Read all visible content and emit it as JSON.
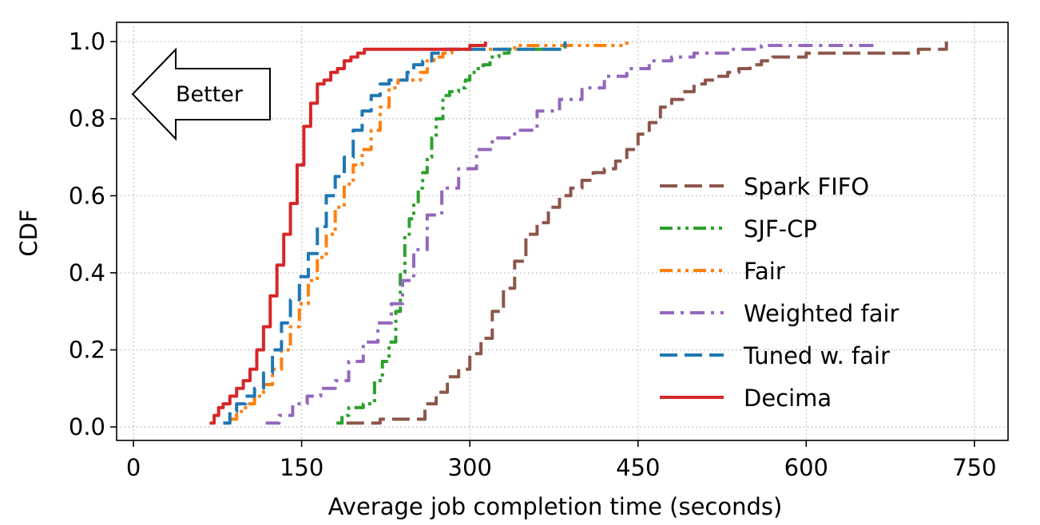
{
  "chart_data": {
    "type": "line",
    "title": "",
    "xlabel": "Average job completion time (seconds)",
    "ylabel": "CDF",
    "xlim": [
      -15,
      780
    ],
    "ylim": [
      -0.035,
      1.05
    ],
    "xticks": [
      0,
      150,
      300,
      450,
      600,
      750
    ],
    "yticks": [
      0.0,
      0.2,
      0.4,
      0.6,
      0.8,
      1.0
    ],
    "xtick_labels": [
      "0",
      "150",
      "300",
      "450",
      "600",
      "750"
    ],
    "ytick_labels": [
      "0.0",
      "0.2",
      "0.4",
      "0.6",
      "0.8",
      "1.0"
    ],
    "grid": "dotted",
    "legend_position": "lower-right",
    "annotation": {
      "text": "Better",
      "shape": "left-arrow"
    },
    "series": [
      {
        "name": "Spark FIFO",
        "color": "#8c564b",
        "dash": "dashed",
        "x": [
          190,
          200,
          210,
          220,
          230,
          240,
          250,
          260,
          270,
          280,
          290,
          300,
          310,
          320,
          330,
          340,
          350,
          360,
          370,
          380,
          390,
          400,
          410,
          420,
          430,
          440,
          450,
          460,
          470,
          480,
          490,
          500,
          510,
          520,
          530,
          540,
          550,
          560,
          570,
          580,
          590,
          600,
          620,
          640,
          660,
          680,
          700,
          725
        ],
        "y": [
          0.01,
          0.01,
          0.01,
          0.02,
          0.02,
          0.02,
          0.02,
          0.06,
          0.09,
          0.13,
          0.15,
          0.19,
          0.23,
          0.3,
          0.36,
          0.43,
          0.5,
          0.53,
          0.57,
          0.6,
          0.62,
          0.64,
          0.66,
          0.67,
          0.69,
          0.72,
          0.76,
          0.79,
          0.83,
          0.85,
          0.87,
          0.89,
          0.9,
          0.91,
          0.92,
          0.93,
          0.94,
          0.95,
          0.96,
          0.96,
          0.96,
          0.97,
          0.97,
          0.97,
          0.97,
          0.97,
          0.98,
          1.0
        ]
      },
      {
        "name": "SJF-CP",
        "color": "#2ca02c",
        "dash": "dashdotdot",
        "x": [
          181,
          186,
          192,
          200,
          205,
          210,
          215,
          222,
          228,
          234,
          238,
          242,
          246,
          250,
          254,
          258,
          262,
          266,
          270,
          276,
          282,
          290,
          296,
          300,
          306,
          312,
          318,
          326,
          335,
          360,
          385
        ],
        "y": [
          0.01,
          0.03,
          0.05,
          0.05,
          0.06,
          0.06,
          0.12,
          0.17,
          0.22,
          0.3,
          0.4,
          0.5,
          0.54,
          0.58,
          0.62,
          0.66,
          0.7,
          0.75,
          0.8,
          0.86,
          0.87,
          0.88,
          0.9,
          0.92,
          0.93,
          0.94,
          0.96,
          0.97,
          0.98,
          0.98,
          1.0
        ]
      },
      {
        "name": "Fair",
        "color": "#ff7f0e",
        "dash": "dashdotdot",
        "x": [
          86,
          92,
          100,
          108,
          116,
          124,
          132,
          140,
          148,
          156,
          164,
          172,
          180,
          188,
          196,
          204,
          212,
          220,
          228,
          236,
          244,
          250,
          256,
          262,
          268,
          276,
          284,
          300,
          340,
          400,
          440
        ],
        "y": [
          0.02,
          0.04,
          0.06,
          0.08,
          0.11,
          0.15,
          0.2,
          0.26,
          0.32,
          0.38,
          0.44,
          0.5,
          0.57,
          0.63,
          0.68,
          0.72,
          0.77,
          0.83,
          0.88,
          0.9,
          0.9,
          0.9,
          0.92,
          0.95,
          0.96,
          0.97,
          0.98,
          0.98,
          0.99,
          0.99,
          1.0
        ]
      },
      {
        "name": "Weighted fair",
        "color": "#9467bd",
        "dash": "dashdot",
        "x": [
          118,
          130,
          142,
          155,
          167,
          180,
          192,
          205,
          218,
          230,
          240,
          250,
          262,
          275,
          290,
          306,
          320,
          340,
          360,
          380,
          400,
          420,
          440,
          460,
          480,
          500,
          530,
          560,
          600,
          640,
          660
        ],
        "y": [
          0.01,
          0.03,
          0.06,
          0.08,
          0.1,
          0.12,
          0.17,
          0.22,
          0.27,
          0.32,
          0.38,
          0.46,
          0.55,
          0.62,
          0.67,
          0.72,
          0.75,
          0.77,
          0.82,
          0.85,
          0.88,
          0.91,
          0.93,
          0.95,
          0.96,
          0.97,
          0.98,
          0.99,
          0.99,
          0.99,
          0.99
        ]
      },
      {
        "name": "Tuned w. fair",
        "color": "#1f77b4",
        "dash": "dashed",
        "x": [
          80,
          86,
          92,
          100,
          108,
          116,
          124,
          132,
          140,
          148,
          156,
          164,
          172,
          180,
          188,
          196,
          204,
          212,
          220,
          228,
          236,
          244,
          250,
          258,
          266,
          274,
          282,
          300,
          350,
          380,
          385
        ],
        "y": [
          0.01,
          0.04,
          0.06,
          0.08,
          0.1,
          0.14,
          0.2,
          0.27,
          0.33,
          0.39,
          0.45,
          0.52,
          0.6,
          0.65,
          0.7,
          0.77,
          0.82,
          0.86,
          0.89,
          0.9,
          0.9,
          0.92,
          0.94,
          0.95,
          0.97,
          0.98,
          0.98,
          0.98,
          0.98,
          0.99,
          1.0
        ]
      },
      {
        "name": "Decima",
        "color": "#d62728",
        "dash": "solid",
        "x": [
          68,
          72,
          76,
          80,
          86,
          92,
          98,
          104,
          110,
          116,
          122,
          128,
          134,
          140,
          146,
          152,
          158,
          164,
          170,
          176,
          182,
          188,
          194,
          200,
          206,
          212,
          220,
          240,
          270,
          300,
          314
        ],
        "y": [
          0.01,
          0.03,
          0.05,
          0.06,
          0.08,
          0.1,
          0.12,
          0.15,
          0.2,
          0.26,
          0.34,
          0.42,
          0.5,
          0.58,
          0.68,
          0.78,
          0.84,
          0.89,
          0.9,
          0.92,
          0.93,
          0.95,
          0.96,
          0.97,
          0.98,
          0.98,
          0.98,
          0.98,
          0.98,
          0.99,
          1.0
        ]
      }
    ]
  }
}
